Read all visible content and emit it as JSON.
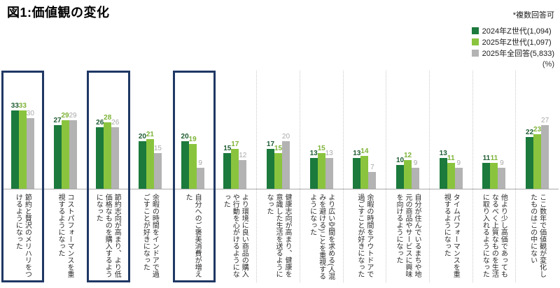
{
  "header": {
    "title": "図1:価値観の変化",
    "note": "*複数回答可",
    "unit_label": "(%)"
  },
  "colors": {
    "highlight_box": "#1f3864",
    "separator": "#c9c9c9",
    "baseline": "#a9a9a9"
  },
  "chart_data": {
    "type": "bar",
    "title": "図1:価値観の変化",
    "legend_position": "top-right",
    "value_labels": true,
    "grid": false,
    "ylim": [
      0,
      50
    ],
    "categories": [
      "節約と贅沢のメリハリをつけるようになった",
      "コストパフォーマンスを重視するようになった",
      "節約志向が高まり、より低価格なものを購入するようになった",
      "余暇の時間をインドアで過ごすことが好きになった",
      "自分へのご褒美消費が増えた",
      "より環境に良い商品の購入や行動を心がけるようになった",
      "健康志向が高まり、健康を意識した生活を送るようになった",
      "より広い空間を求める(人混みを避ける)ことを重視するようになった",
      "余暇の時間をアウトドアで過ごすことが好きになった",
      "自分が住んでいるまちや地元の商品やサービスに興味を向けるようになった",
      "タイムパフォーマンスを重視するようになった",
      "他より少し高価であってもなるべく上質なものを生活に取り入れるようになった",
      "ここ数年で価値観が変化したものはこの中にない"
    ],
    "series": [
      {
        "name": "2024年Z世代(1,094)",
        "color": "#1b7a3c",
        "label_color": "#1e5c31",
        "label_bold": true,
        "values": [
          33,
          27,
          26,
          20,
          20,
          15,
          17,
          13,
          13,
          10,
          13,
          11,
          22
        ]
      },
      {
        "name": "2025年Z世代(1,097)",
        "color": "#8ac43e",
        "label_color": "#7db337",
        "label_bold": true,
        "values": [
          33,
          29,
          28,
          21,
          19,
          17,
          15,
          15,
          14,
          12,
          11,
          11,
          23
        ]
      },
      {
        "name": "2025年全回答(5,833)",
        "color": "#b3b3b3",
        "label_color": "#a8a8a8",
        "label_bold": false,
        "values": [
          30,
          29,
          26,
          15,
          9,
          12,
          20,
          13,
          7,
          9,
          9,
          9,
          27
        ]
      }
    ],
    "highlighted_categories": [
      0,
      2,
      4
    ]
  }
}
